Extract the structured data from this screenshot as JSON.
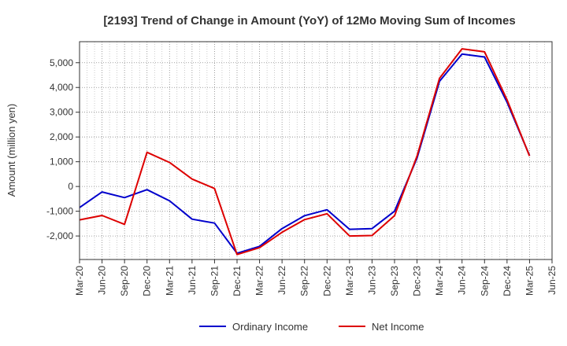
{
  "chart_data": {
    "type": "line",
    "title": "[2193]  Trend of Change in Amount (YoY) of 12Mo Moving Sum of Incomes",
    "xlabel": "",
    "ylabel": "Amount (million yen)",
    "categories": [
      "Mar-20",
      "Jun-20",
      "Sep-20",
      "Dec-20",
      "Mar-21",
      "Jun-21",
      "Sep-21",
      "Dec-21",
      "Mar-22",
      "Jun-22",
      "Sep-22",
      "Dec-22",
      "Mar-23",
      "Jun-23",
      "Sep-23",
      "Dec-23",
      "Mar-24",
      "Jun-24",
      "Sep-24",
      "Dec-24",
      "Mar-25",
      "Jun-25"
    ],
    "y_ticks": [
      -2000,
      -1000,
      0,
      1000,
      2000,
      3000,
      4000,
      5000
    ],
    "y_tick_labels": [
      "-2,000",
      "-1,000",
      "0",
      "1,000",
      "2,000",
      "3,000",
      "4,000",
      "5,000"
    ],
    "ylim": [
      -2950,
      5850
    ],
    "grid": true,
    "legend_position": "bottom",
    "series": [
      {
        "name": "Ordinary Income",
        "color": "#0000cc",
        "values": [
          -850,
          -220,
          -450,
          -130,
          -580,
          -1320,
          -1480,
          -2700,
          -2420,
          -1700,
          -1180,
          -940,
          -1730,
          -1700,
          -1000,
          1150,
          4250,
          5350,
          5230,
          3400,
          1250,
          null
        ]
      },
      {
        "name": "Net Income",
        "color": "#dd0000",
        "values": [
          -1350,
          -1170,
          -1530,
          1380,
          970,
          300,
          -80,
          -2750,
          -2470,
          -1850,
          -1340,
          -1100,
          -2000,
          -1980,
          -1180,
          1230,
          4370,
          5560,
          5440,
          3500,
          1230,
          null
        ]
      }
    ]
  }
}
